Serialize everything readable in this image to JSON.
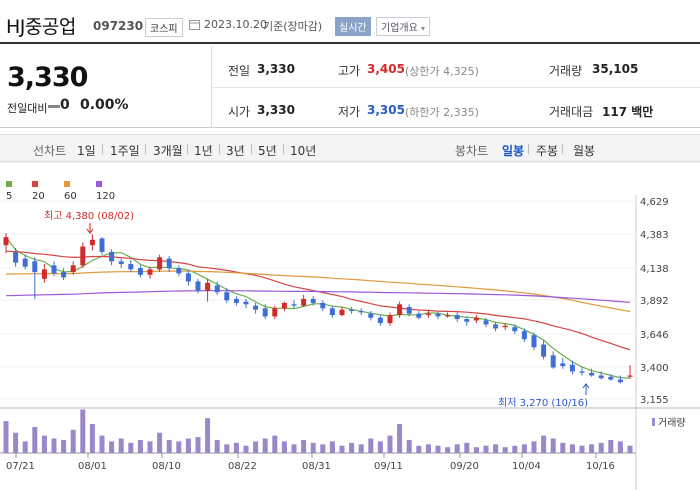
{
  "header": {
    "name": "HJ중공업",
    "code": "097230",
    "market": "코스피",
    "date": "2023.10.20",
    "basis": "기준(장마감)",
    "realtime": "실시간",
    "company_info": "기업개요"
  },
  "summary": {
    "price": "3,330",
    "change_label": "전일대비",
    "change_value": "0",
    "change_pct": "0.00%",
    "prev_close_label": "전일",
    "prev_close": "3,330",
    "open_label": "시가",
    "open": "3,330",
    "high_label": "고가",
    "high": "3,405",
    "upper_limit": "(상한가 4,325)",
    "low_label": "저가",
    "low": "3,305",
    "lower_limit": "(하한가 2,335)",
    "volume_label": "거래량",
    "volume": "35,105",
    "amount_label": "거래대금",
    "amount": "117 백만"
  },
  "tabs": {
    "line_label": "선차트",
    "periods": [
      "1일",
      "1주일",
      "3개월",
      "1년",
      "3년",
      "5년",
      "10년"
    ],
    "candle_label": "봉차트",
    "candle_types": [
      "일봉",
      "주봉",
      "월봉"
    ],
    "active_candle": "일봉"
  },
  "legend": [
    {
      "label": "5",
      "color": "#6ab04c"
    },
    {
      "label": "20",
      "color": "#d64545"
    },
    {
      "label": "60",
      "color": "#e09a3c"
    },
    {
      "label": "120",
      "color": "#9b59d6"
    }
  ],
  "colors": {
    "up": "#d12b2b",
    "down": "#3f6fd6",
    "volume": "#9b88c8"
  },
  "chart_data": {
    "type": "candlestick",
    "y_ticks": [
      "4,629",
      "4,383",
      "4,138",
      "3,892",
      "3,646",
      "3,400",
      "3,155"
    ],
    "x_labels": [
      "07/21",
      "08/01",
      "08/10",
      "08/22",
      "08/31",
      "09/11",
      "09/20",
      "10/04",
      "10/16"
    ],
    "annotations": {
      "high": "최고 4,380 (08/02)",
      "low": "최저 3,270 (10/16)"
    },
    "volume_label": "거래량",
    "ma_series": [
      "5",
      "20",
      "60",
      "120"
    ]
  }
}
